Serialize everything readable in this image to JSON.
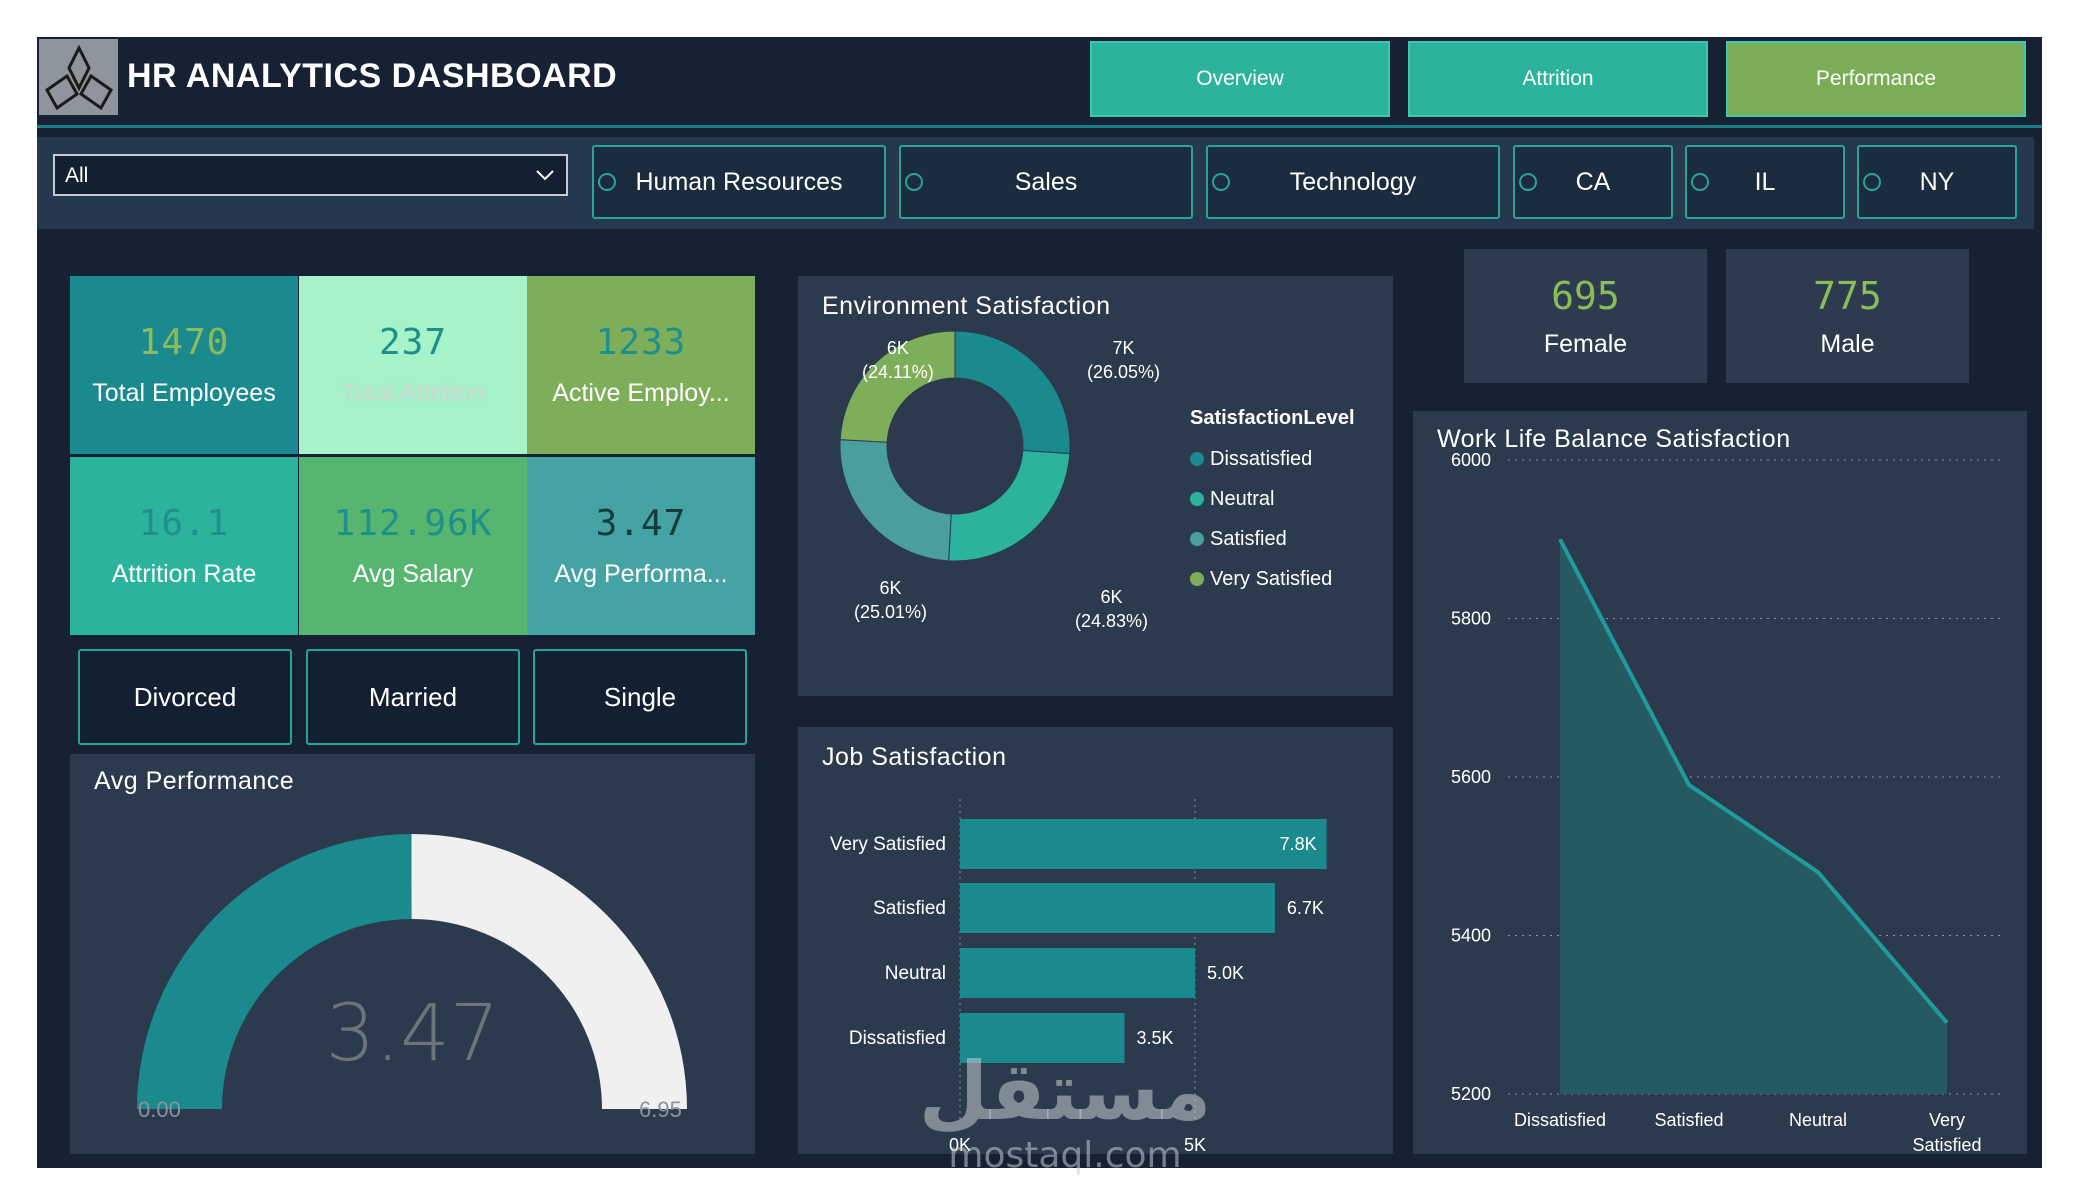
{
  "header": {
    "title": "HR ANALYTICS DASHBOARD",
    "nav": [
      {
        "label": "Overview",
        "color": "#2bb39b"
      },
      {
        "label": "Attrition",
        "color": "#2bb39b"
      },
      {
        "label": "Performance",
        "color": "#7aad55"
      }
    ]
  },
  "filters": {
    "dropdown_value": "All",
    "departments": [
      "Human Resources",
      "Sales",
      "Technology"
    ],
    "states": [
      "CA",
      "IL",
      "NY"
    ]
  },
  "kpis": [
    {
      "value": "1470",
      "label": "Total Employees",
      "bg": "#1a8a8f",
      "val_color": "#8cbc5a",
      "lbl_color": "#ffffff"
    },
    {
      "value": "237",
      "label": "Total Attrition",
      "bg": "#a6f2c9",
      "val_color": "#1f8f8c",
      "lbl_color": "#d0d8d4"
    },
    {
      "value": "1233",
      "label": "Active Employ...",
      "bg": "#7fae5a",
      "val_color": "#1f8f8c",
      "lbl_color": "#ffffff"
    },
    {
      "value": "16.1",
      "label": "Attrition Rate",
      "bg": "#2bb39b",
      "val_color": "#1f8f8c",
      "lbl_color": "#ffffff"
    },
    {
      "value": "112.96K",
      "label": "Avg Salary",
      "bg": "#56b56f",
      "val_color": "#1f8f8c",
      "lbl_color": "#ffffff"
    },
    {
      "value": "3.47",
      "label": "Avg Performa...",
      "bg": "#46a3a3",
      "val_color": "#163b3d",
      "lbl_color": "#ffffff"
    }
  ],
  "marital": [
    "Divorced",
    "Married",
    "Single"
  ],
  "gauge": {
    "title": "Avg Performance",
    "value": 3.47,
    "value_label": "3.47",
    "min_label": "0.00",
    "max_label": "6.95",
    "fill_color": "#1a8a8f",
    "track_color": "#f0f0f0"
  },
  "environment": {
    "title": "Environment Satisfaction",
    "legend_title": "SatisfactionLevel",
    "slices": [
      {
        "name": "Dissatisfied",
        "percent": 26.05,
        "value_label": "7K",
        "pct_label": "(26.05%)",
        "color": "#1a8a8f"
      },
      {
        "name": "Neutral",
        "percent": 24.83,
        "value_label": "6K",
        "pct_label": "(24.83%)",
        "color": "#2bb39b"
      },
      {
        "name": "Satisfied",
        "percent": 25.01,
        "value_label": "6K",
        "pct_label": "(25.01%)",
        "color": "#4a9e9c"
      },
      {
        "name": "Very Satisfied",
        "percent": 24.11,
        "value_label": "6K",
        "pct_label": "(24.11%)",
        "color": "#7fae5a"
      }
    ]
  },
  "job": {
    "title": "Job Satisfaction",
    "bars": [
      {
        "name": "Very Satisfied",
        "value": 7.8,
        "label": "7.8K"
      },
      {
        "name": "Satisfied",
        "value": 6.7,
        "label": "6.7K"
      },
      {
        "name": "Neutral",
        "value": 5.0,
        "label": "5.0K"
      },
      {
        "name": "Dissatisfied",
        "value": 3.5,
        "label": "3.5K"
      }
    ],
    "axis_labels": [
      "0K",
      "5K"
    ]
  },
  "gender": [
    {
      "value": "695",
      "label": "Female"
    },
    {
      "value": "775",
      "label": "Male"
    }
  ],
  "chart_data": {
    "type": "area",
    "title": "Work Life Balance Satisfaction",
    "categories": [
      "Dissatisfied",
      "Satisfied",
      "Neutral",
      "Very Satisfied"
    ],
    "values": [
      5900,
      5590,
      5480,
      5290
    ],
    "ylim": [
      5200,
      6000
    ],
    "yticks": [
      "6000",
      "5800",
      "5600",
      "5400",
      "5200"
    ],
    "xticks": [
      "Dissatisfied",
      "Satisfied",
      "Neutral",
      "Very",
      "Satisfied"
    ],
    "grid": true,
    "line_color": "#1f9c9a",
    "fill_color": "#265a63"
  },
  "watermark": {
    "arabic": "مستقل",
    "latin": "mostaql.com"
  }
}
